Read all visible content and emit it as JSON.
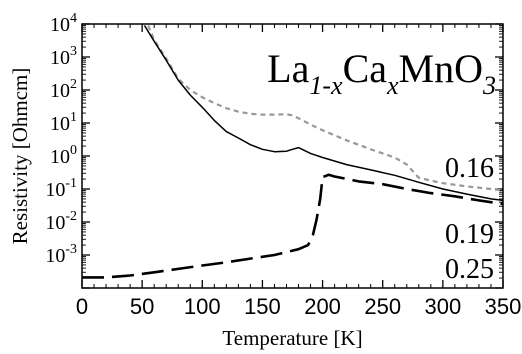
{
  "chart_data": {
    "type": "line",
    "title": {
      "parts": [
        {
          "text": "La",
          "style": "normal"
        },
        {
          "text": "1-x",
          "style": "sub"
        },
        {
          "text": "Ca",
          "style": "normal"
        },
        {
          "text": "x",
          "style": "sub"
        },
        {
          "text": "MnO",
          "style": "normal"
        },
        {
          "text": "3",
          "style": "sub"
        }
      ]
    },
    "xlabel": "Temperature [K]",
    "ylabel": "Resistivity [Ohmcm]",
    "xlim": [
      0,
      350
    ],
    "ylim": [
      0.0001,
      10000
    ],
    "yscale": "log",
    "xticks": [
      0,
      50,
      100,
      150,
      200,
      250,
      300,
      350
    ],
    "yticks": [
      {
        "value": 0.001,
        "base": "10",
        "exp": "-3"
      },
      {
        "value": 0.01,
        "base": "10",
        "exp": "-2"
      },
      {
        "value": 0.1,
        "base": "10",
        "exp": "-1"
      },
      {
        "value": 1,
        "base": "10",
        "exp": "0"
      },
      {
        "value": 10,
        "base": "10",
        "exp": "1"
      },
      {
        "value": 100,
        "base": "10",
        "exp": "2"
      },
      {
        "value": 1000,
        "base": "10",
        "exp": "3"
      },
      {
        "value": 10000,
        "base": "10",
        "exp": "4"
      }
    ],
    "grid": false,
    "legend": "none",
    "series": [
      {
        "label": "0.16",
        "style": "dashed-gray",
        "color": "#999999",
        "points": [
          [
            55,
            9000
          ],
          [
            60,
            3300
          ],
          [
            70,
            900
          ],
          [
            80,
            220
          ],
          [
            90,
            100
          ],
          [
            100,
            60
          ],
          [
            110,
            40
          ],
          [
            120,
            28
          ],
          [
            130,
            22
          ],
          [
            140,
            19
          ],
          [
            150,
            18
          ],
          [
            160,
            18
          ],
          [
            170,
            18.5
          ],
          [
            175,
            17
          ],
          [
            180,
            14
          ],
          [
            190,
            9
          ],
          [
            200,
            6
          ],
          [
            220,
            3
          ],
          [
            240,
            1.6
          ],
          [
            260,
            0.9
          ],
          [
            270,
            0.55
          ],
          [
            280,
            0.22
          ],
          [
            290,
            0.18
          ],
          [
            300,
            0.15
          ],
          [
            320,
            0.12
          ],
          [
            340,
            0.1
          ],
          [
            350,
            0.09
          ]
        ]
      },
      {
        "label": "0.19",
        "style": "solid-black",
        "color": "#000000",
        "points": [
          [
            52,
            9000
          ],
          [
            60,
            3000
          ],
          [
            70,
            800
          ],
          [
            80,
            200
          ],
          [
            90,
            70
          ],
          [
            100,
            30
          ],
          [
            110,
            12
          ],
          [
            120,
            5.5
          ],
          [
            130,
            3.5
          ],
          [
            140,
            2.2
          ],
          [
            150,
            1.6
          ],
          [
            160,
            1.35
          ],
          [
            170,
            1.4
          ],
          [
            175,
            1.6
          ],
          [
            180,
            1.8
          ],
          [
            190,
            1.2
          ],
          [
            200,
            0.9
          ],
          [
            220,
            0.55
          ],
          [
            240,
            0.38
          ],
          [
            260,
            0.26
          ],
          [
            280,
            0.16
          ],
          [
            300,
            0.1
          ],
          [
            320,
            0.07
          ],
          [
            340,
            0.05
          ],
          [
            350,
            0.045
          ]
        ]
      },
      {
        "label": "0.25",
        "style": "long-dashed-black",
        "color": "#000000",
        "points": [
          [
            0,
            0.00021
          ],
          [
            20,
            0.00021
          ],
          [
            40,
            0.00024
          ],
          [
            60,
            0.0003
          ],
          [
            80,
            0.00038
          ],
          [
            100,
            0.00048
          ],
          [
            120,
            0.0006
          ],
          [
            140,
            0.00078
          ],
          [
            160,
            0.001
          ],
          [
            180,
            0.0015
          ],
          [
            188,
            0.002
          ],
          [
            192,
            0.004
          ],
          [
            195,
            0.012
          ],
          [
            198,
            0.05
          ],
          [
            200,
            0.23
          ],
          [
            205,
            0.27
          ],
          [
            210,
            0.24
          ],
          [
            230,
            0.17
          ],
          [
            250,
            0.14
          ],
          [
            270,
            0.1
          ],
          [
            290,
            0.075
          ],
          [
            310,
            0.06
          ],
          [
            330,
            0.045
          ],
          [
            350,
            0.035
          ]
        ]
      }
    ]
  }
}
